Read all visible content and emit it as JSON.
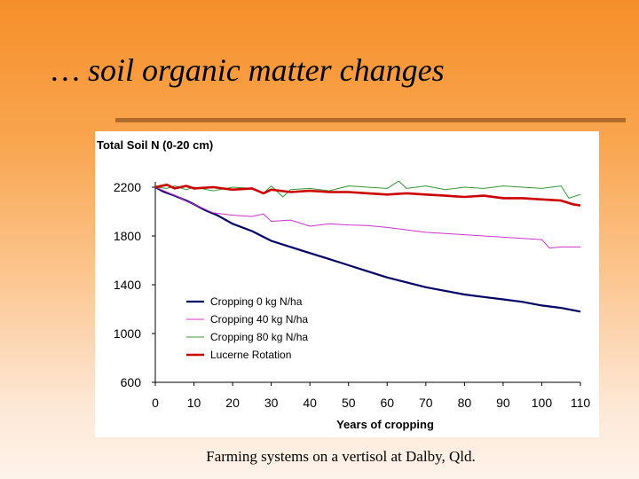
{
  "slide": {
    "title": "… soil organic matter changes",
    "caption": "Farming systems on a vertisol at  Dalby, Qld."
  },
  "chart_data": {
    "type": "line",
    "title": "Total Soil N (0-20 cm)",
    "xlabel": "Years of cropping",
    "ylabel": "",
    "xlim": [
      0,
      110
    ],
    "ylim": [
      600,
      2200
    ],
    "xticks": [
      0,
      10,
      20,
      30,
      40,
      50,
      60,
      70,
      80,
      90,
      100,
      110
    ],
    "yticks": [
      600,
      1000,
      1400,
      1800,
      2200
    ],
    "grid": false,
    "legend_position": "lower-left",
    "series": [
      {
        "name": "Cropping 0 kg N/ha",
        "color": "#000066",
        "x": [
          0,
          2,
          5,
          8,
          10,
          13,
          16,
          20,
          25,
          30,
          35,
          40,
          45,
          50,
          55,
          60,
          65,
          70,
          75,
          80,
          85,
          90,
          95,
          100,
          105,
          110
        ],
        "y": [
          2200,
          2165,
          2130,
          2090,
          2060,
          2010,
          1970,
          1900,
          1840,
          1760,
          1710,
          1660,
          1610,
          1560,
          1510,
          1460,
          1420,
          1380,
          1350,
          1320,
          1300,
          1280,
          1260,
          1230,
          1210,
          1180
        ]
      },
      {
        "name": "Cropping 40 kg N/ha",
        "color": "#cc33cc",
        "x": [
          0,
          3,
          6,
          8,
          10,
          15,
          20,
          25,
          28,
          30,
          35,
          40,
          45,
          50,
          55,
          60,
          65,
          70,
          75,
          80,
          85,
          90,
          95,
          100,
          102,
          105,
          110
        ],
        "y": [
          2200,
          2160,
          2120,
          2085,
          2060,
          1990,
          1970,
          1960,
          1980,
          1920,
          1930,
          1880,
          1900,
          1890,
          1885,
          1870,
          1850,
          1830,
          1820,
          1810,
          1800,
          1790,
          1780,
          1770,
          1700,
          1710,
          1710
        ]
      },
      {
        "name": "Cropping 80 kg N/ha",
        "color": "#339933",
        "x": [
          0,
          3,
          5,
          8,
          10,
          15,
          20,
          25,
          28,
          30,
          33,
          35,
          40,
          45,
          50,
          55,
          60,
          63,
          65,
          70,
          75,
          80,
          85,
          90,
          95,
          100,
          105,
          107,
          110
        ],
        "y": [
          2200,
          2190,
          2210,
          2180,
          2200,
          2170,
          2200,
          2190,
          2150,
          2210,
          2120,
          2180,
          2190,
          2170,
          2210,
          2200,
          2190,
          2250,
          2190,
          2210,
          2180,
          2200,
          2190,
          2210,
          2200,
          2190,
          2210,
          2110,
          2140
        ]
      },
      {
        "name": "Lucerne Rotation",
        "color": "#cc0000",
        "x": [
          0,
          3,
          5,
          8,
          10,
          15,
          20,
          25,
          28,
          30,
          35,
          40,
          45,
          50,
          55,
          60,
          65,
          70,
          75,
          80,
          85,
          90,
          95,
          100,
          105,
          108,
          110
        ],
        "y": [
          2200,
          2220,
          2190,
          2210,
          2190,
          2200,
          2180,
          2190,
          2150,
          2180,
          2160,
          2170,
          2160,
          2160,
          2150,
          2140,
          2150,
          2140,
          2130,
          2120,
          2130,
          2110,
          2110,
          2100,
          2090,
          2060,
          2050
        ]
      }
    ]
  }
}
